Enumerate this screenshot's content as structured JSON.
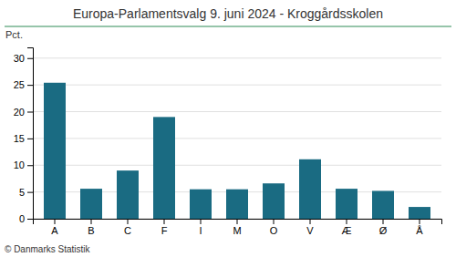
{
  "chart_data": {
    "type": "bar",
    "title": "Europa-Parlamentsvalg 9. juni 2024 - Kroggårdsskolen",
    "ylabel": "Pct.",
    "footer": "© Danmarks Statistik",
    "categories": [
      "A",
      "B",
      "C",
      "F",
      "I",
      "M",
      "O",
      "V",
      "Æ",
      "Ø",
      "Å"
    ],
    "values": [
      25.4,
      5.6,
      9.0,
      19.0,
      5.5,
      5.5,
      6.6,
      11.1,
      5.6,
      5.2,
      2.2
    ],
    "color": "#1a6b82",
    "ylim": [
      0,
      32
    ],
    "yticks": [
      0,
      5,
      10,
      15,
      20,
      25,
      30
    ],
    "grid": true
  }
}
